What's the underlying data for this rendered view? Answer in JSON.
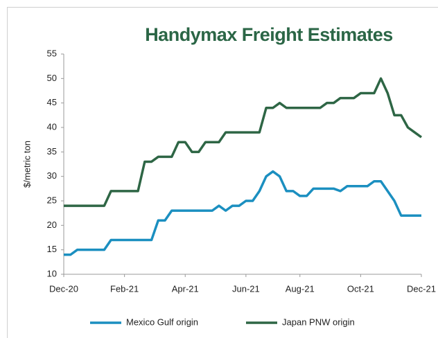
{
  "chart_data": {
    "type": "line",
    "title": "Handymax Freight Estimates",
    "y_label": "$/metric ton",
    "categories": [
      "Dec-20",
      null,
      null,
      null,
      null,
      null,
      null,
      null,
      null,
      "Feb-21",
      null,
      null,
      null,
      null,
      null,
      null,
      null,
      null,
      "Apr-21",
      null,
      null,
      null,
      null,
      null,
      null,
      null,
      null,
      "Jun-21",
      null,
      null,
      null,
      null,
      null,
      null,
      null,
      "Aug-21",
      null,
      null,
      null,
      null,
      null,
      null,
      null,
      null,
      "Oct-21",
      null,
      null,
      null,
      null,
      null,
      null,
      null,
      null,
      "Dec-21"
    ],
    "series": [
      {
        "name": "Mexico Gulf origin",
        "color": "#1b8fc0",
        "values": [
          14,
          14,
          15,
          15,
          15,
          15,
          15,
          17,
          17,
          17,
          17,
          17,
          17,
          17,
          21,
          21,
          23,
          23,
          23,
          23,
          23,
          23,
          23,
          24,
          23,
          24,
          24,
          25,
          25,
          27,
          30,
          31,
          30,
          27,
          27,
          26,
          26,
          27.5,
          27.5,
          27.5,
          27.5,
          27,
          28,
          28,
          28,
          28,
          29,
          29,
          27,
          25,
          22,
          22,
          22,
          22
        ]
      },
      {
        "name": "Japan PNW origin",
        "color": "#2e6645",
        "values": [
          24,
          24,
          24,
          24,
          24,
          24,
          24,
          27,
          27,
          27,
          27,
          27,
          33,
          33,
          34,
          34,
          34,
          37,
          37,
          35,
          35,
          37,
          37,
          37,
          39,
          39,
          39,
          39,
          39,
          39,
          44,
          44,
          45,
          44,
          44,
          44,
          44,
          44,
          44,
          45,
          45,
          46,
          46,
          46,
          47,
          47,
          47,
          50,
          47,
          42.5,
          42.5,
          40,
          39,
          38
        ]
      }
    ],
    "ylim": [
      10,
      55
    ],
    "yticks": [
      10,
      15,
      20,
      25,
      30,
      35,
      40,
      45,
      50,
      55
    ],
    "grid": false
  }
}
